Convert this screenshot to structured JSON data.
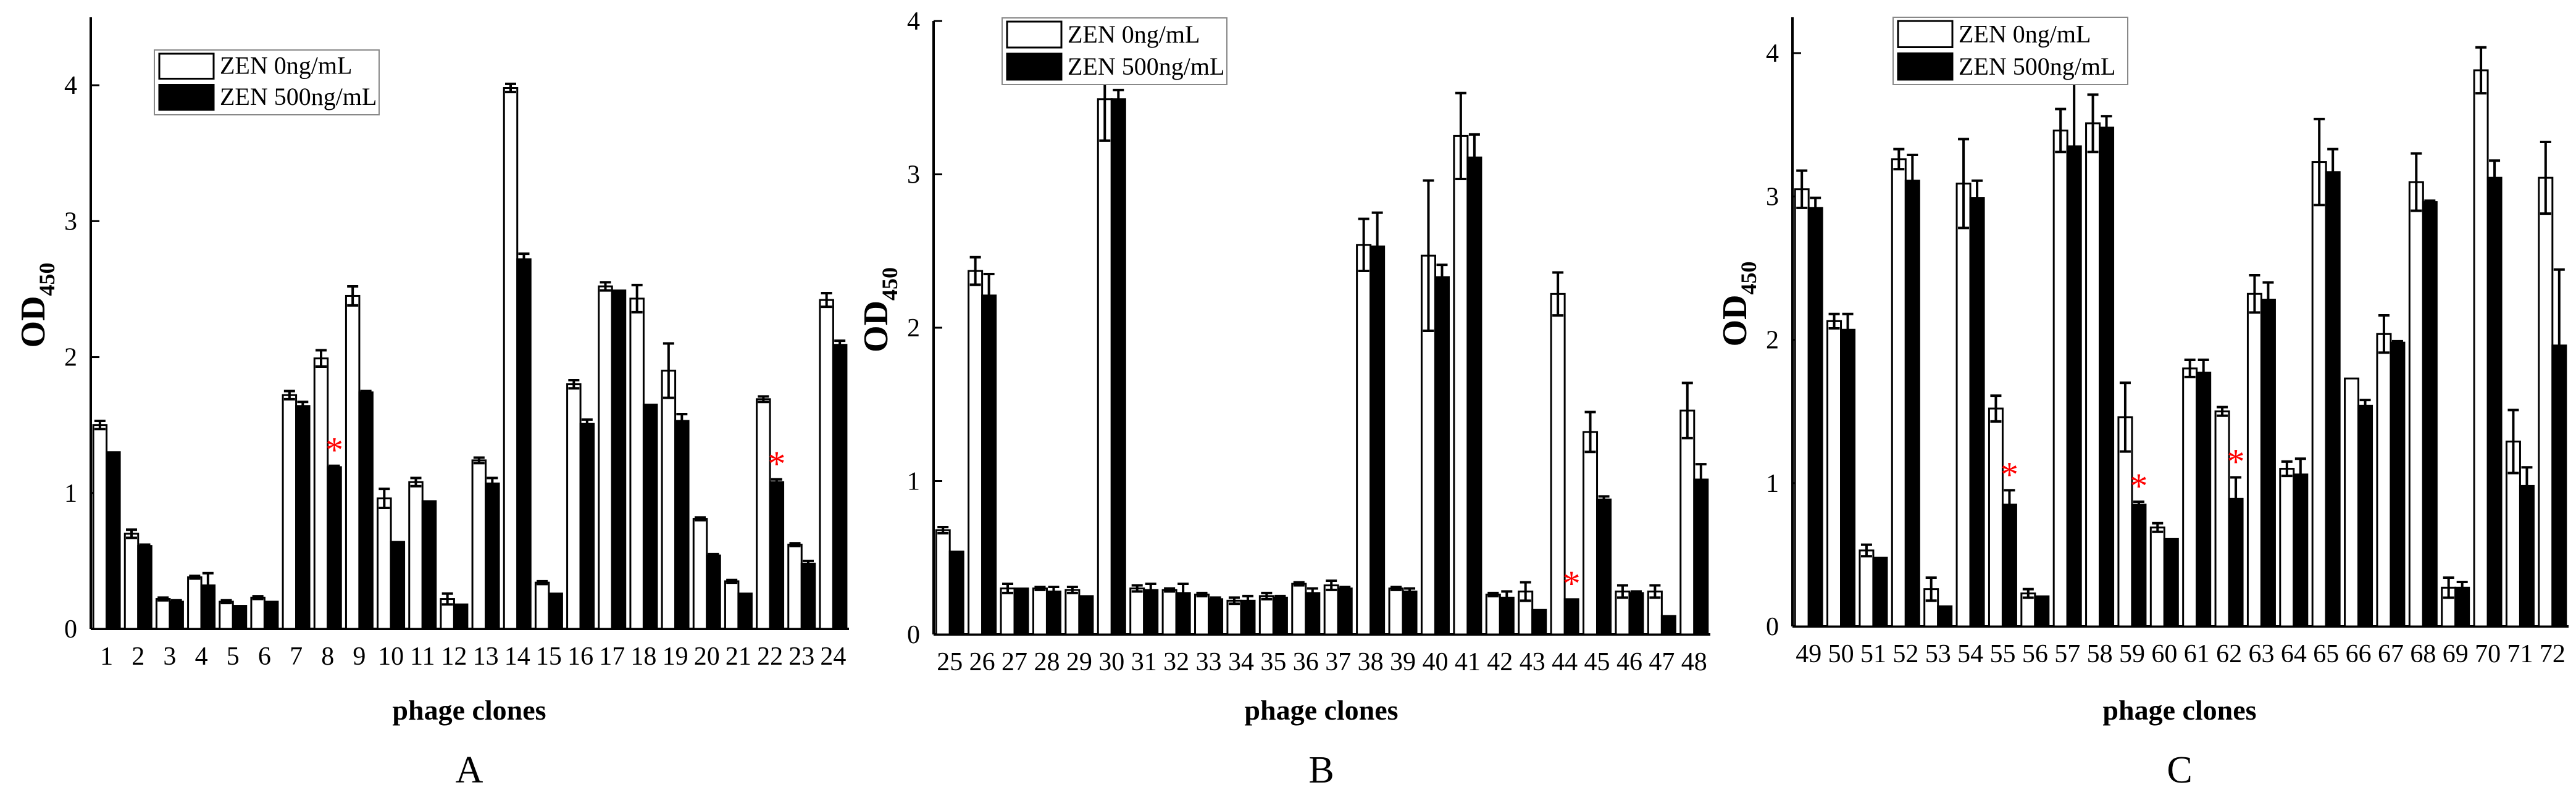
{
  "chart_data": [
    {
      "type": "bar",
      "panel_label": "A",
      "xlabel": "phage clones",
      "ylabel": "OD",
      "ylabel_sub": "450",
      "ylim": [
        0,
        4.5
      ],
      "yticks": [
        0,
        1,
        2,
        3,
        4
      ],
      "grid": false,
      "legend_placement": "top-left",
      "categories": [
        "1",
        "2",
        "3",
        "4",
        "5",
        "6",
        "7",
        "8",
        "9",
        "10",
        "11",
        "12",
        "13",
        "14",
        "15",
        "16",
        "17",
        "18",
        "19",
        "20",
        "21",
        "22",
        "23",
        "24"
      ],
      "series": [
        {
          "name": "ZEN 0ng/mL",
          "fill": "#ffffff",
          "values": [
            1.5,
            0.7,
            0.22,
            0.38,
            0.2,
            0.23,
            1.72,
            1.99,
            2.45,
            0.96,
            1.08,
            0.22,
            1.24,
            3.98,
            0.34,
            1.8,
            2.52,
            2.43,
            1.9,
            0.81,
            0.35,
            1.69,
            0.62,
            2.42
          ],
          "errors": [
            0.03,
            0.03,
            0.01,
            0.01,
            0.01,
            0.01,
            0.03,
            0.06,
            0.07,
            0.07,
            0.03,
            0.04,
            0.02,
            0.03,
            0.01,
            0.03,
            0.03,
            0.1,
            0.2,
            0.01,
            0.01,
            0.02,
            0.01,
            0.05
          ]
        },
        {
          "name": "ZEN 500ng/mL",
          "fill": "#000000",
          "values": [
            1.3,
            0.61,
            0.2,
            0.32,
            0.17,
            0.2,
            1.64,
            1.19,
            1.74,
            0.64,
            0.94,
            0.18,
            1.07,
            2.72,
            0.26,
            1.51,
            2.49,
            1.65,
            1.53,
            0.54,
            0.26,
            1.08,
            0.48,
            2.09
          ],
          "errors": [
            0,
            0.01,
            0.01,
            0.09,
            0,
            0,
            0.03,
            0.01,
            0.01,
            0,
            0,
            0,
            0.04,
            0.04,
            0,
            0.03,
            0,
            0,
            0.05,
            0.01,
            0,
            0.02,
            0.02,
            0.03
          ]
        }
      ],
      "annotations": [
        {
          "text": "*",
          "category": "8",
          "color": "#ff0000"
        },
        {
          "text": "*",
          "category": "22",
          "color": "#ff0000"
        }
      ]
    },
    {
      "type": "bar",
      "panel_label": "B",
      "xlabel": "phage clones",
      "ylabel": "OD",
      "ylabel_sub": "450",
      "ylim": [
        0,
        4
      ],
      "yticks": [
        0,
        1,
        2,
        3,
        4
      ],
      "grid": false,
      "legend_placement": "top-left",
      "categories": [
        "25",
        "26",
        "27",
        "28",
        "29",
        "30",
        "31",
        "32",
        "33",
        "34",
        "35",
        "36",
        "37",
        "38",
        "39",
        "40",
        "41",
        "42",
        "43",
        "44",
        "45",
        "46",
        "47",
        "48"
      ],
      "series": [
        {
          "name": "ZEN 0ng/mL",
          "fill": "#ffffff",
          "values": [
            0.68,
            2.37,
            0.3,
            0.3,
            0.29,
            3.49,
            0.3,
            0.29,
            0.26,
            0.22,
            0.25,
            0.33,
            0.32,
            2.54,
            0.3,
            2.47,
            3.25,
            0.26,
            0.28,
            2.22,
            1.32,
            0.28,
            0.28,
            1.46
          ],
          "errors": [
            0.02,
            0.09,
            0.03,
            0.01,
            0.02,
            0.27,
            0.02,
            0.01,
            0.01,
            0.02,
            0.02,
            0.01,
            0.03,
            0.17,
            0.01,
            0.49,
            0.28,
            0.01,
            0.06,
            0.14,
            0.13,
            0.04,
            0.04,
            0.18
          ]
        },
        {
          "name": "ZEN 500ng/mL",
          "fill": "#000000",
          "values": [
            0.54,
            2.21,
            0.3,
            0.28,
            0.25,
            3.49,
            0.29,
            0.27,
            0.23,
            0.22,
            0.24,
            0.27,
            0.3,
            2.53,
            0.28,
            2.33,
            3.11,
            0.24,
            0.16,
            0.23,
            0.88,
            0.27,
            0.12,
            1.01
          ],
          "errors": [
            0,
            0.14,
            0,
            0.03,
            0,
            0.06,
            0.04,
            0.06,
            0.01,
            0.03,
            0.01,
            0.03,
            0.01,
            0.22,
            0.02,
            0.08,
            0.15,
            0.04,
            0,
            0,
            0.02,
            0.01,
            0,
            0.1
          ]
        }
      ],
      "annotations": [
        {
          "text": "*",
          "category": "44",
          "color": "#ff0000"
        }
      ]
    },
    {
      "type": "bar",
      "panel_label": "C",
      "xlabel": "phage clones",
      "ylabel": "OD",
      "ylabel_sub": "450",
      "ylim": [
        0,
        4.25
      ],
      "yticks": [
        0,
        1,
        2,
        3,
        4
      ],
      "grid": false,
      "legend_placement": "top-left",
      "categories": [
        "49",
        "50",
        "51",
        "52",
        "53",
        "54",
        "55",
        "56",
        "57",
        "58",
        "59",
        "60",
        "61",
        "62",
        "63",
        "64",
        "65",
        "66",
        "67",
        "68",
        "69",
        "70",
        "71",
        "72"
      ],
      "series": [
        {
          "name": "ZEN 0ng/mL",
          "fill": "#ffffff",
          "values": [
            3.05,
            2.13,
            0.53,
            3.26,
            0.26,
            3.09,
            1.52,
            0.23,
            3.46,
            3.51,
            1.46,
            0.69,
            1.8,
            1.5,
            2.32,
            1.1,
            3.24,
            1.73,
            2.04,
            3.1,
            0.27,
            3.88,
            1.29,
            3.13
          ],
          "errors": [
            0.13,
            0.05,
            0.04,
            0.07,
            0.08,
            0.31,
            0.09,
            0.03,
            0.15,
            0.2,
            0.24,
            0.03,
            0.06,
            0.03,
            0.13,
            0.05,
            0.3,
            0,
            0.13,
            0.2,
            0.07,
            0.16,
            0.22,
            0.25
          ]
        },
        {
          "name": "ZEN 500ng/mL",
          "fill": "#000000",
          "values": [
            2.92,
            2.07,
            0.48,
            3.11,
            0.14,
            2.99,
            0.85,
            0.21,
            3.35,
            3.48,
            0.85,
            0.61,
            1.77,
            0.89,
            2.28,
            1.06,
            3.17,
            1.54,
            1.98,
            2.96,
            0.27,
            3.13,
            0.98,
            1.96
          ],
          "errors": [
            0.07,
            0.11,
            0,
            0.18,
            0,
            0.12,
            0.1,
            0,
            0.5,
            0.08,
            0.02,
            0,
            0.09,
            0.15,
            0.12,
            0.11,
            0.16,
            0.04,
            0.01,
            0.01,
            0.04,
            0.12,
            0.13,
            0.53
          ]
        }
      ],
      "annotations": [
        {
          "text": "*",
          "category": "55",
          "color": "#ff0000"
        },
        {
          "text": "*",
          "category": "59",
          "color": "#ff0000"
        },
        {
          "text": "*",
          "category": "62",
          "color": "#ff0000"
        }
      ]
    }
  ]
}
